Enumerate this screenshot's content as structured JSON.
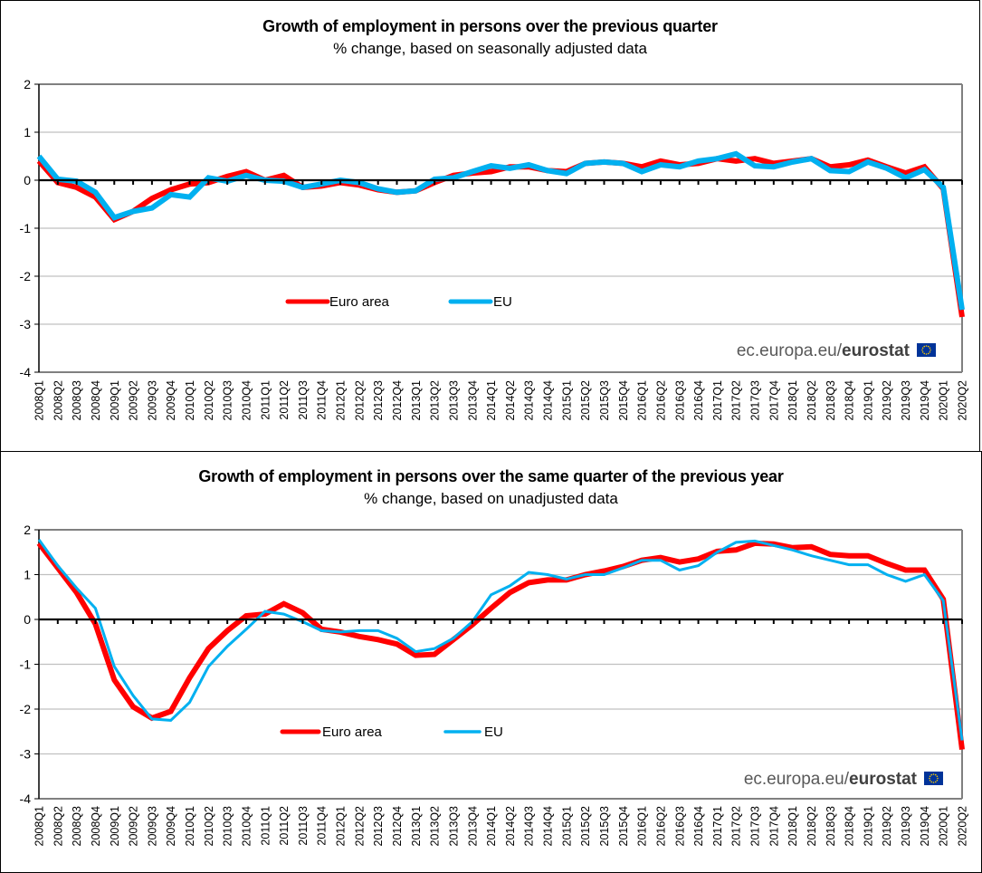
{
  "chart_data": [
    {
      "type": "line",
      "title": "Growth of employment in persons over the previous quarter",
      "subtitle": "% change, based on seasonally adjusted data",
      "xlabel": "",
      "ylabel": "",
      "ylim": [
        -4,
        2
      ],
      "yticks": [
        2,
        1,
        0,
        -1,
        -2,
        -3,
        -4
      ],
      "grid": true,
      "legend_position": "center-lower",
      "credit": {
        "text": "ec.europa.eu/",
        "bold": "eurostat"
      },
      "categories": [
        "2008Q1",
        "2008Q2",
        "2008Q3",
        "2008Q4",
        "2009Q1",
        "2009Q2",
        "2009Q3",
        "2009Q4",
        "2010Q1",
        "2010Q2",
        "2010Q3",
        "2010Q4",
        "2011Q1",
        "2011Q2",
        "2011Q3",
        "2011Q4",
        "2012Q1",
        "2012Q2",
        "2012Q3",
        "2012Q4",
        "2013Q1",
        "2013Q2",
        "2013Q3",
        "2013Q4",
        "2014Q1",
        "2014Q2",
        "2014Q3",
        "2014Q4",
        "2015Q1",
        "2015Q2",
        "2015Q3",
        "2015Q4",
        "2016Q1",
        "2016Q2",
        "2016Q3",
        "2016Q4",
        "2017Q1",
        "2017Q2",
        "2017Q3",
        "2017Q4",
        "2018Q1",
        "2018Q2",
        "2018Q3",
        "2018Q4",
        "2019Q1",
        "2019Q2",
        "2019Q3",
        "2019Q4",
        "2020Q1",
        "2020Q2"
      ],
      "series": [
        {
          "name": "Euro area",
          "color": "#ff0000",
          "values": [
            0.4,
            -0.05,
            -0.15,
            -0.35,
            -0.82,
            -0.65,
            -0.38,
            -0.2,
            -0.08,
            -0.05,
            0.08,
            0.18,
            0.0,
            0.1,
            -0.15,
            -0.12,
            -0.05,
            -0.1,
            -0.2,
            -0.25,
            -0.22,
            -0.05,
            0.1,
            0.15,
            0.18,
            0.28,
            0.28,
            0.2,
            0.18,
            0.35,
            0.38,
            0.35,
            0.28,
            0.4,
            0.32,
            0.35,
            0.45,
            0.4,
            0.45,
            0.35,
            0.4,
            0.45,
            0.28,
            0.32,
            0.42,
            0.28,
            0.15,
            0.28,
            -0.18,
            -2.85
          ]
        },
        {
          "name": "EU",
          "color": "#00b0f0",
          "values": [
            0.5,
            0.02,
            -0.02,
            -0.25,
            -0.78,
            -0.65,
            -0.58,
            -0.3,
            -0.35,
            0.05,
            -0.02,
            0.1,
            0.0,
            -0.02,
            -0.15,
            -0.08,
            0.0,
            -0.05,
            -0.18,
            -0.25,
            -0.22,
            0.02,
            0.05,
            0.18,
            0.3,
            0.25,
            0.32,
            0.2,
            0.14,
            0.35,
            0.38,
            0.35,
            0.18,
            0.32,
            0.28,
            0.4,
            0.45,
            0.55,
            0.3,
            0.28,
            0.38,
            0.45,
            0.2,
            0.18,
            0.38,
            0.25,
            0.05,
            0.22,
            -0.15,
            -2.7
          ]
        }
      ]
    },
    {
      "type": "line",
      "title": "Growth of employment in persons over the same quarter of the previous year",
      "subtitle": "% change, based on unadjusted data",
      "xlabel": "",
      "ylabel": "",
      "ylim": [
        -4,
        2
      ],
      "yticks": [
        2,
        1,
        0,
        -1,
        -2,
        -3,
        -4
      ],
      "grid": true,
      "legend_position": "center-lower",
      "credit": {
        "text": "ec.europa.eu/",
        "bold": "eurostat"
      },
      "categories": [
        "2008Q1",
        "2008Q2",
        "2008Q3",
        "2008Q4",
        "2009Q1",
        "2009Q2",
        "2009Q3",
        "2009Q4",
        "2010Q1",
        "2010Q2",
        "2010Q3",
        "2010Q4",
        "2011Q1",
        "2011Q2",
        "2011Q3",
        "2011Q4",
        "2012Q1",
        "2012Q2",
        "2012Q3",
        "2012Q4",
        "2013Q1",
        "2013Q2",
        "2013Q3",
        "2013Q4",
        "2014Q1",
        "2014Q2",
        "2014Q3",
        "2014Q4",
        "2015Q1",
        "2015Q2",
        "2015Q3",
        "2015Q4",
        "2016Q1",
        "2016Q2",
        "2016Q3",
        "2016Q4",
        "2017Q1",
        "2017Q2",
        "2017Q3",
        "2017Q4",
        "2018Q1",
        "2018Q2",
        "2018Q3",
        "2018Q4",
        "2019Q1",
        "2019Q2",
        "2019Q3",
        "2019Q4",
        "2020Q1",
        "2020Q2"
      ],
      "series": [
        {
          "name": "Euro area",
          "color": "#ff0000",
          "values": [
            1.7,
            1.15,
            0.6,
            -0.1,
            -1.35,
            -1.95,
            -2.2,
            -2.05,
            -1.3,
            -0.65,
            -0.25,
            0.08,
            0.12,
            0.35,
            0.15,
            -0.22,
            -0.28,
            -0.38,
            -0.45,
            -0.55,
            -0.8,
            -0.78,
            -0.45,
            -0.12,
            0.25,
            0.6,
            0.82,
            0.88,
            0.88,
            1.0,
            1.08,
            1.18,
            1.32,
            1.38,
            1.28,
            1.35,
            1.52,
            1.55,
            1.7,
            1.68,
            1.6,
            1.62,
            1.45,
            1.42,
            1.42,
            1.25,
            1.1,
            1.1,
            0.45,
            -2.9
          ]
        },
        {
          "name": "EU",
          "color": "#00b0f0",
          "values": [
            1.78,
            1.2,
            0.7,
            0.25,
            -1.05,
            -1.7,
            -2.22,
            -2.25,
            -1.85,
            -1.05,
            -0.6,
            -0.22,
            0.18,
            0.12,
            -0.05,
            -0.25,
            -0.28,
            -0.25,
            -0.25,
            -0.42,
            -0.72,
            -0.65,
            -0.42,
            -0.05,
            0.55,
            0.75,
            1.05,
            1.0,
            0.9,
            1.0,
            1.0,
            1.15,
            1.32,
            1.32,
            1.1,
            1.2,
            1.5,
            1.72,
            1.75,
            1.65,
            1.55,
            1.42,
            1.32,
            1.22,
            1.22,
            1.0,
            0.85,
            1.0,
            0.42,
            -2.7
          ]
        }
      ]
    }
  ]
}
